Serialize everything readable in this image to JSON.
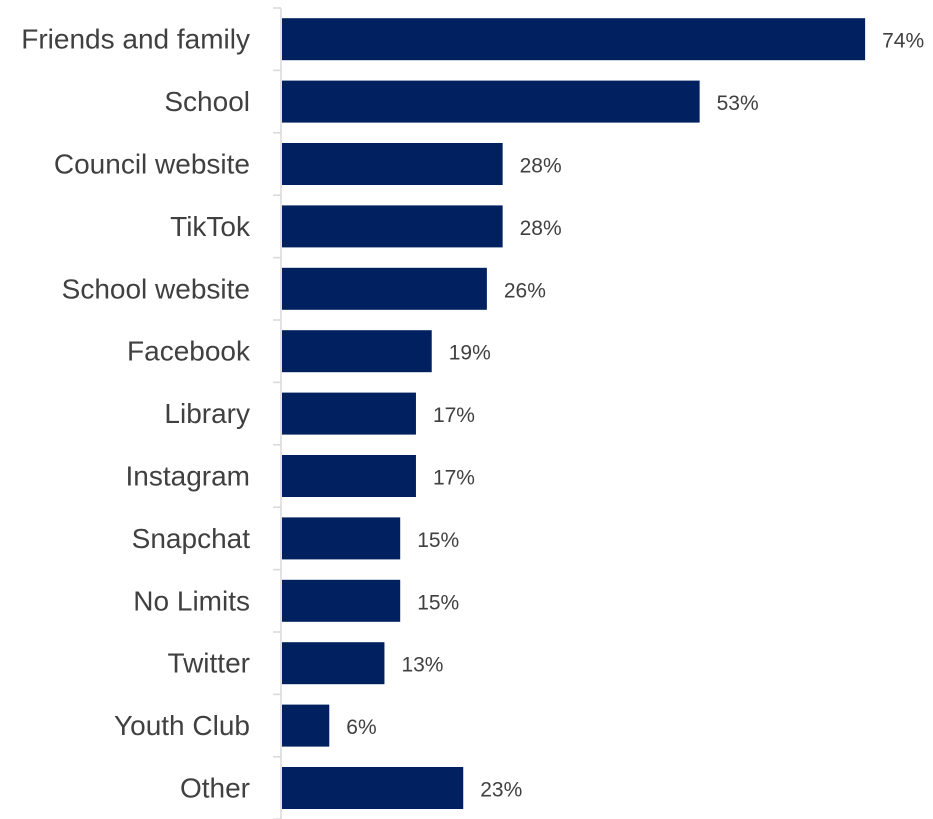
{
  "chart_data": {
    "type": "bar",
    "orientation": "horizontal",
    "categories": [
      "Friends and family",
      "School",
      "Council website",
      "TikTok",
      "School website",
      "Facebook",
      "Library",
      "Instagram",
      "Snapchat",
      "No Limits",
      "Twitter",
      "Youth Club",
      "Other"
    ],
    "values": [
      74,
      53,
      28,
      28,
      26,
      19,
      17,
      17,
      15,
      15,
      13,
      6,
      23
    ],
    "value_labels": [
      "74%",
      "53%",
      "28%",
      "28%",
      "26%",
      "19%",
      "17%",
      "17%",
      "15%",
      "15%",
      "13%",
      "6%",
      "23%"
    ],
    "unit": "%",
    "title": "",
    "xlabel": "",
    "ylabel": "",
    "xlim": [
      0,
      74
    ],
    "grid": false,
    "legend": "none",
    "bar_color": "#002060",
    "axis_color": "#d9d9d9",
    "text_color": "#404040"
  }
}
